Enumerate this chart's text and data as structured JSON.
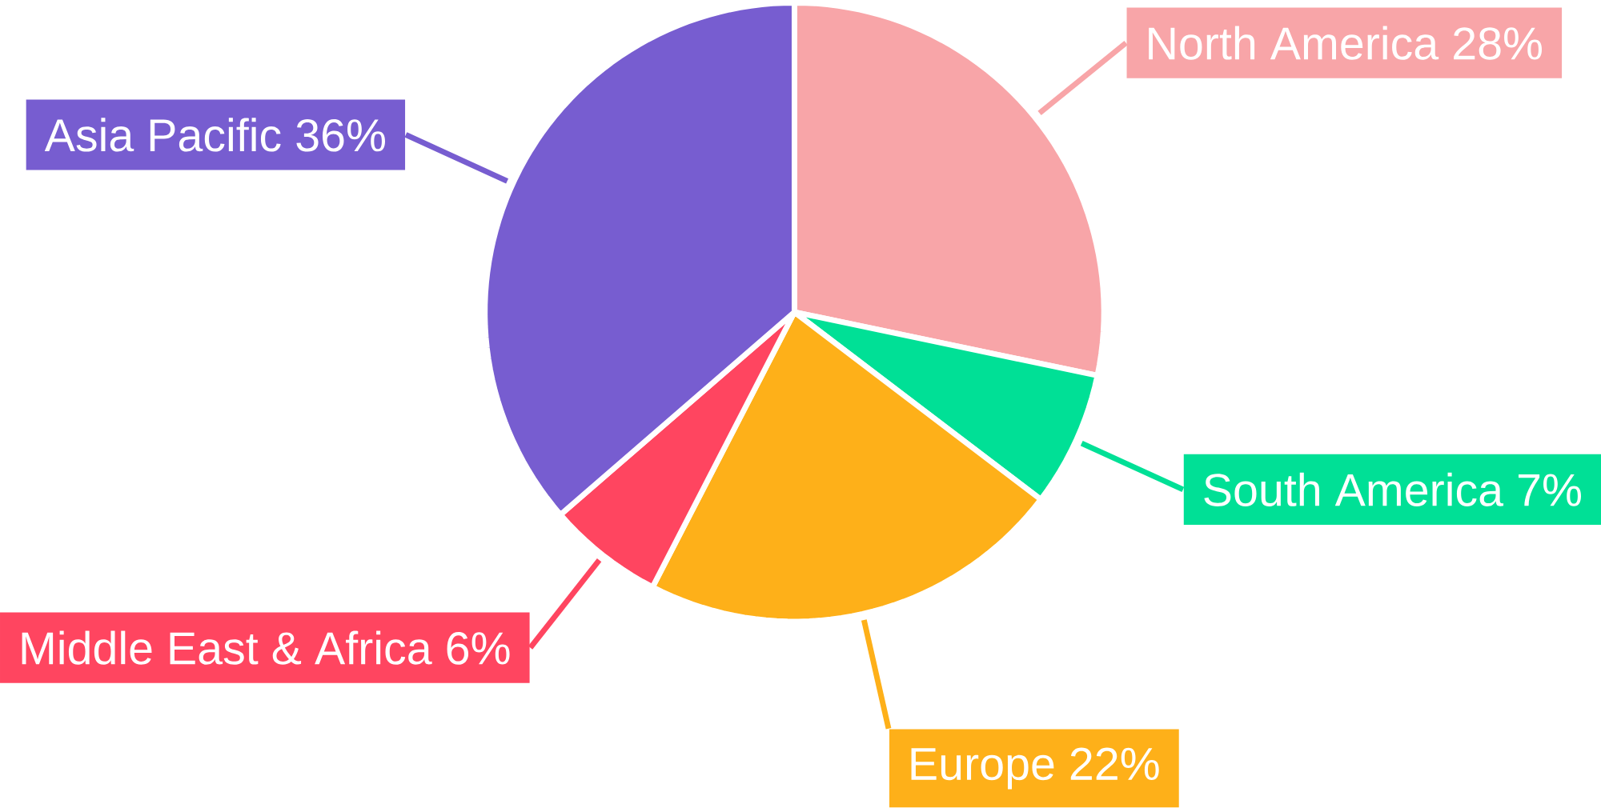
{
  "chart_data": {
    "type": "pie",
    "categories": [
      "North America",
      "South America",
      "Europe",
      "Middle East & Africa",
      "Asia Pacific"
    ],
    "values": [
      28,
      7,
      22,
      6,
      36
    ],
    "value_labels": [
      "28%",
      "7%",
      "22%",
      "6%",
      "36%"
    ],
    "colors": [
      "#f8a5a8",
      "#00e096",
      "#feb019",
      "#ff4560",
      "#775dd0"
    ]
  }
}
